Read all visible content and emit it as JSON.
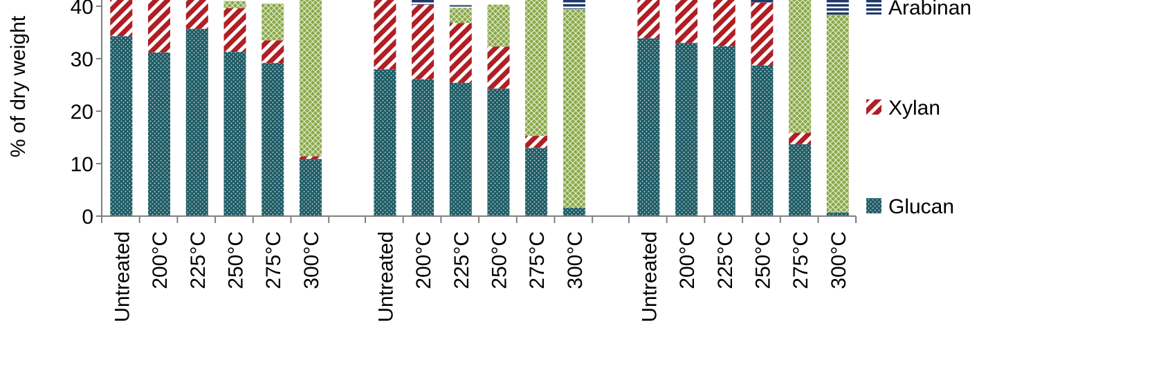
{
  "chart_data": {
    "type": "bar",
    "stacked": true,
    "ylabel": "% of dry weight",
    "ylim": [
      0,
      40
    ],
    "yticks": [
      0,
      10,
      20,
      30,
      40
    ],
    "groups": [
      {
        "categories": [
          "Untreated",
          "200°C",
          "225°C",
          "250°C",
          "275°C",
          "300°C"
        ]
      },
      {
        "categories": [
          "Untreated",
          "200°C",
          "225°C",
          "250°C",
          "275°C",
          "300°C"
        ]
      },
      {
        "categories": [
          "Untreated",
          "200°C",
          "225°C",
          "250°C",
          "275°C",
          "300°C"
        ]
      }
    ],
    "series": [
      {
        "name": "Glucan",
        "color": "#1f5c66",
        "pattern": "dots",
        "values": [
          [
            34.3,
            31.2,
            35.7,
            31.3,
            29.2,
            10.9
          ],
          [
            28.0,
            26.1,
            25.4,
            24.3,
            13.0,
            1.6
          ],
          [
            33.9,
            33.0,
            32.4,
            28.7,
            13.7,
            0.7
          ]
        ]
      },
      {
        "name": "Xylan",
        "color": "#b01f24",
        "pattern": "diagonal",
        "values": [
          [
            8.0,
            11.0,
            6.0,
            8.3,
            4.3,
            0.5
          ],
          [
            14.0,
            14.2,
            11.4,
            8.0,
            2.3,
            0
          ],
          [
            8.0,
            9.0,
            9.5,
            12.0,
            2.2,
            0
          ]
        ]
      },
      {
        "name": "",
        "color": "#8aa94a",
        "pattern": "crosshatch",
        "values": [
          [
            0,
            0,
            0,
            1.4,
            7.0,
            31.0
          ],
          [
            0,
            0,
            2.9,
            8.0,
            27.0,
            37.9
          ],
          [
            0,
            0,
            0,
            0,
            26.0,
            37.7
          ]
        ]
      },
      {
        "name": "Arabinan",
        "color": "#1f3a68",
        "pattern": "horizontal",
        "values": [
          [
            0,
            0,
            0,
            0,
            0,
            0
          ],
          [
            0,
            1.0,
            0.5,
            0,
            0,
            2.2
          ],
          [
            0,
            0,
            0,
            0.5,
            0,
            3.1
          ]
        ]
      }
    ],
    "legend": [
      "Arabinan",
      "Xylan",
      "Glucan"
    ],
    "legend_position": "right",
    "grid": false
  }
}
